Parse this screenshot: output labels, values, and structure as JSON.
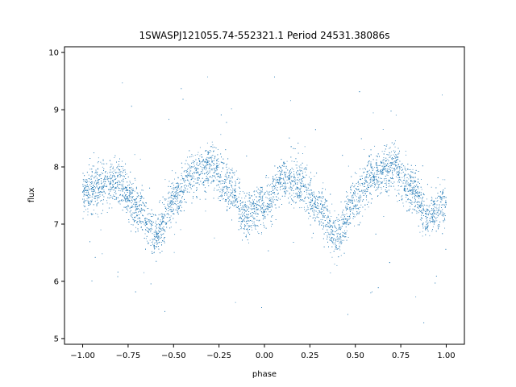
{
  "chart_data": {
    "type": "scatter",
    "title": "1SWASPJ121055.74-552321.1 Period 24531.38086s",
    "xlabel": "phase",
    "ylabel": "flux",
    "xlim": [
      -1.1,
      1.1
    ],
    "ylim": [
      4.9,
      10.1
    ],
    "xticks": [
      -1.0,
      -0.75,
      -0.5,
      -0.25,
      0.0,
      0.25,
      0.5,
      0.75,
      1.0
    ],
    "xtick_labels": [
      "−1.00",
      "−0.75",
      "−0.50",
      "−0.25",
      "0.00",
      "0.25",
      "0.50",
      "0.75",
      "1.00"
    ],
    "yticks": [
      5,
      6,
      7,
      8,
      9,
      10
    ],
    "ytick_labels": [
      "5",
      "6",
      "7",
      "8",
      "9",
      "10"
    ],
    "grid": false,
    "marker_color": "#1f77b4",
    "light_curve": {
      "x": [
        -1.0,
        -0.9,
        -0.8,
        -0.7,
        -0.6,
        -0.5,
        -0.4,
        -0.3,
        -0.2,
        -0.1,
        0.0,
        0.1,
        0.2,
        0.3,
        0.4,
        0.5,
        0.6,
        0.7,
        0.8,
        0.9,
        1.0
      ],
      "y": [
        7.55,
        7.7,
        7.7,
        7.3,
        6.8,
        7.4,
        7.85,
        8.0,
        7.65,
        7.15,
        7.35,
        7.75,
        7.7,
        7.3,
        6.8,
        7.45,
        7.85,
        8.0,
        7.65,
        7.15,
        7.35
      ]
    }
  }
}
